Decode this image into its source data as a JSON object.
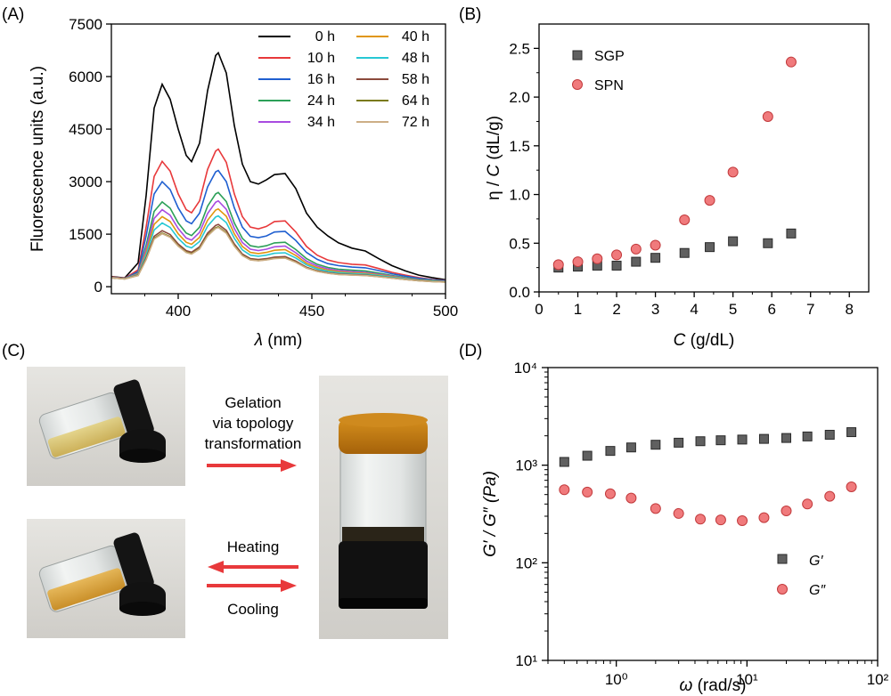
{
  "panels": {
    "A": {
      "label": "(A)"
    },
    "B": {
      "label": "(B)"
    },
    "C": {
      "label": "(C)"
    },
    "D": {
      "label": "(D)"
    }
  },
  "photos": {
    "gel_caption": [
      "Gelation",
      "via topology",
      "transformation"
    ],
    "heating_label": "Heating",
    "cooling_label": "Cooling",
    "colors": {
      "solution": "#c9a23a",
      "solution2": "#d29a1e",
      "gel_top": "#c27a10",
      "cap": "#111111",
      "bg": "#d8d6d2"
    }
  },
  "chart_data": [
    {
      "id": "A",
      "type": "line",
      "xlabel": "λ (nm)",
      "ylabel": "Fluorescence units (a.u.)",
      "xlim": [
        375,
        500
      ],
      "ylim": [
        -200,
        7500
      ],
      "xticks": [
        400,
        450,
        500
      ],
      "yticks": [
        0,
        1500,
        3000,
        4500,
        6000,
        7500
      ],
      "x": [
        375,
        380,
        385,
        388,
        391,
        394,
        397,
        400,
        403,
        405,
        408,
        411,
        414,
        415,
        418,
        421,
        424,
        427,
        430,
        433,
        436,
        440,
        444,
        448,
        452,
        456,
        460,
        465,
        470,
        475,
        480,
        485,
        490,
        495,
        500
      ],
      "series": [
        {
          "name": "0 h",
          "color": "#000000",
          "values": [
            290,
            250,
            680,
            2600,
            5100,
            5780,
            5350,
            4500,
            3750,
            3570,
            4100,
            5600,
            6600,
            6680,
            6100,
            4600,
            3500,
            3000,
            2930,
            3050,
            3200,
            3230,
            2800,
            2100,
            1700,
            1450,
            1250,
            1100,
            1020,
            800,
            600,
            450,
            330,
            260,
            200
          ]
        },
        {
          "name": "10 h",
          "color": "#e8393b",
          "values": [
            280,
            240,
            480,
            1700,
            3150,
            3580,
            3300,
            2650,
            2200,
            2110,
            2450,
            3350,
            3870,
            3930,
            3550,
            2650,
            2000,
            1700,
            1650,
            1720,
            1860,
            1880,
            1560,
            1150,
            900,
            760,
            690,
            640,
            620,
            520,
            410,
            330,
            260,
            210,
            180
          ]
        },
        {
          "name": "16 h",
          "color": "#1f5fd0",
          "values": [
            270,
            235,
            430,
            1450,
            2650,
            3000,
            2770,
            2250,
            1880,
            1800,
            2100,
            2850,
            3280,
            3320,
            3000,
            2250,
            1700,
            1440,
            1400,
            1450,
            1560,
            1580,
            1320,
            980,
            780,
            660,
            600,
            560,
            540,
            460,
            370,
            300,
            240,
            200,
            170
          ]
        },
        {
          "name": "24 h",
          "color": "#2ca058",
          "values": [
            265,
            232,
            390,
            1180,
            2150,
            2420,
            2240,
            1820,
            1530,
            1460,
            1700,
            2300,
            2650,
            2690,
            2430,
            1820,
            1380,
            1170,
            1130,
            1170,
            1250,
            1270,
            1060,
            800,
            640,
            550,
            500,
            470,
            450,
            390,
            320,
            260,
            210,
            180,
            155
          ]
        },
        {
          "name": "34 h",
          "color": "#a84be0",
          "values": [
            262,
            230,
            375,
            1080,
            1950,
            2200,
            2040,
            1660,
            1390,
            1330,
            1550,
            2090,
            2410,
            2450,
            2210,
            1660,
            1260,
            1070,
            1030,
            1070,
            1140,
            1160,
            970,
            730,
            590,
            510,
            460,
            430,
            410,
            360,
            300,
            245,
            200,
            170,
            150
          ]
        },
        {
          "name": "40 h",
          "color": "#e0960f",
          "values": [
            260,
            228,
            360,
            980,
            1780,
            2000,
            1860,
            1510,
            1270,
            1210,
            1410,
            1900,
            2190,
            2220,
            2010,
            1510,
            1150,
            980,
            945,
            980,
            1040,
            1060,
            890,
            670,
            545,
            470,
            430,
            400,
            385,
            340,
            285,
            235,
            190,
            165,
            145
          ]
        },
        {
          "name": "48 h",
          "color": "#27c8d4",
          "values": [
            258,
            226,
            345,
            900,
            1620,
            1820,
            1690,
            1380,
            1160,
            1110,
            1290,
            1730,
            1990,
            2020,
            1830,
            1380,
            1050,
            900,
            870,
            900,
            955,
            970,
            820,
            620,
            505,
            440,
            400,
            375,
            360,
            320,
            270,
            225,
            185,
            160,
            140
          ]
        },
        {
          "name": "58 h",
          "color": "#8b4a3c",
          "values": [
            255,
            224,
            330,
            820,
            1440,
            1600,
            1490,
            1220,
            1030,
            985,
            1140,
            1530,
            1750,
            1780,
            1610,
            1220,
            930,
            800,
            775,
            800,
            845,
            860,
            730,
            555,
            455,
            400,
            365,
            345,
            330,
            295,
            250,
            210,
            175,
            150,
            135
          ]
        },
        {
          "name": "64 h",
          "color": "#7a7a18",
          "values": [
            253,
            222,
            320,
            780,
            1380,
            1530,
            1430,
            1170,
            990,
            945,
            1090,
            1470,
            1680,
            1710,
            1545,
            1170,
            895,
            770,
            745,
            770,
            810,
            825,
            700,
            535,
            440,
            385,
            352,
            333,
            320,
            288,
            245,
            205,
            170,
            147,
            132
          ]
        },
        {
          "name": "72 h",
          "color": "#cdae86",
          "values": [
            252,
            221,
            315,
            770,
            1360,
            1510,
            1410,
            1155,
            975,
            930,
            1075,
            1450,
            1660,
            1690,
            1525,
            1155,
            885,
            762,
            737,
            762,
            802,
            817,
            694,
            530,
            436,
            382,
            350,
            331,
            318,
            286,
            243,
            203,
            169,
            146,
            131
          ]
        }
      ]
    },
    {
      "id": "B",
      "type": "scatter",
      "xlabel": "C (g/dL)",
      "ylabel": "η / C (dL/g)",
      "xlim": [
        0,
        8.5
      ],
      "ylim": [
        0,
        2.75
      ],
      "xticks": [
        0,
        1,
        2,
        3,
        4,
        5,
        6,
        7,
        8
      ],
      "yticks": [
        0.0,
        0.5,
        1.0,
        1.5,
        2.0,
        2.5
      ],
      "ytick_labels": [
        "0.0",
        "0.5",
        "1.0",
        "1.5",
        "2.0",
        "2.5"
      ],
      "legend_position": "top-left",
      "series": [
        {
          "name": "SGP",
          "marker": "square",
          "color": "#606060",
          "x": [
            0.5,
            1.0,
            1.5,
            2.0,
            2.5,
            3.0,
            3.75,
            4.4,
            5.0,
            5.9,
            6.5
          ],
          "y": [
            0.25,
            0.26,
            0.27,
            0.27,
            0.31,
            0.35,
            0.4,
            0.46,
            0.52,
            0.5,
            0.6
          ]
        },
        {
          "name": "SPN",
          "marker": "circle",
          "color": "#f07a7c",
          "x": [
            0.5,
            1.0,
            1.5,
            2.0,
            2.5,
            3.0,
            3.75,
            4.4,
            5.0,
            5.9,
            6.5
          ],
          "y": [
            0.28,
            0.31,
            0.34,
            0.38,
            0.44,
            0.48,
            0.74,
            0.94,
            1.23,
            1.8,
            2.36
          ]
        }
      ]
    },
    {
      "id": "D",
      "type": "scatter",
      "xlabel": "ω (rad/s)",
      "ylabel": "G′ / G″ (Pa)",
      "xscale": "log",
      "yscale": "log",
      "xlim": [
        0.3,
        100
      ],
      "ylim": [
        10,
        10000
      ],
      "xticks": [
        1,
        10,
        100
      ],
      "xtick_labels": [
        "10⁰",
        "10¹",
        "10²"
      ],
      "yticks": [
        10,
        100,
        1000,
        10000
      ],
      "ytick_labels": [
        "10¹",
        "10²",
        "10³",
        "10⁴"
      ],
      "legend_position": "bottom-right",
      "series": [
        {
          "name": "G′",
          "marker": "square",
          "color": "#606060",
          "x": [
            0.4,
            0.6,
            0.9,
            1.3,
            2.0,
            3.0,
            4.4,
            6.3,
            9.2,
            13.5,
            20,
            29,
            43,
            63
          ],
          "y": [
            1080,
            1250,
            1400,
            1520,
            1620,
            1700,
            1760,
            1800,
            1830,
            1860,
            1900,
            1970,
            2050,
            2180
          ]
        },
        {
          "name": "G″",
          "marker": "circle",
          "color": "#f07a7c",
          "x": [
            0.4,
            0.6,
            0.9,
            1.3,
            2.0,
            3.0,
            4.4,
            6.3,
            9.2,
            13.5,
            20,
            29,
            43,
            63
          ],
          "y": [
            560,
            530,
            510,
            460,
            360,
            320,
            280,
            275,
            270,
            290,
            340,
            400,
            480,
            600
          ]
        }
      ]
    }
  ]
}
